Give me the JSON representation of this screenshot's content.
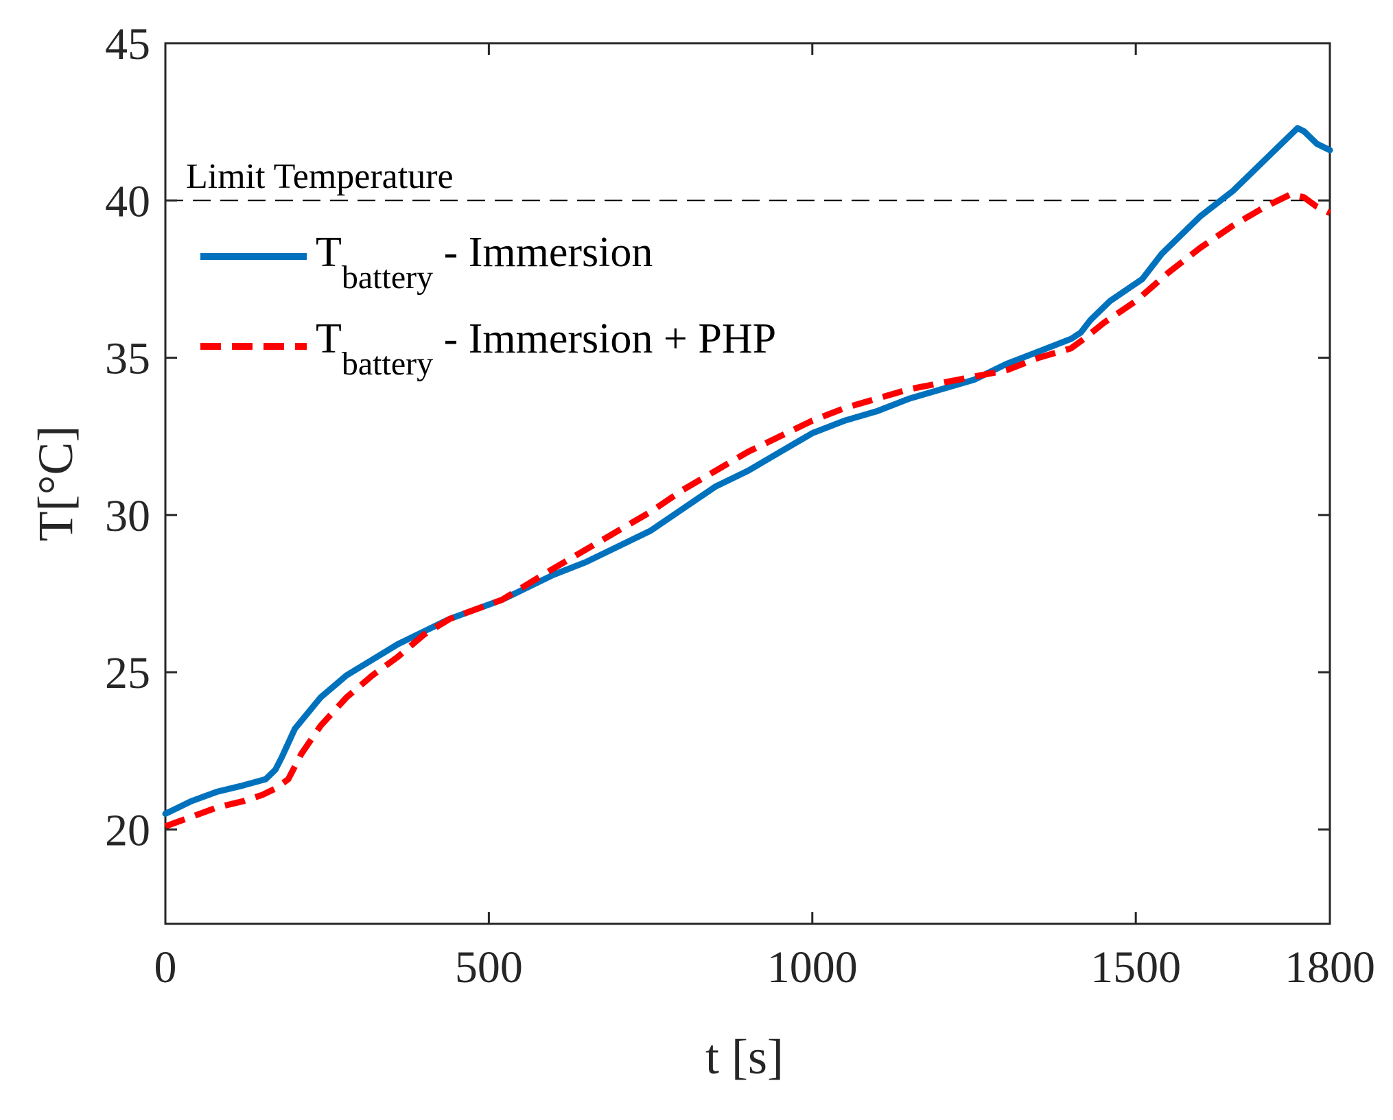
{
  "chart_data": {
    "type": "line",
    "title": "",
    "xlabel": "t [s]",
    "ylabel": "T[°C]",
    "xlim": [
      0,
      1800
    ],
    "ylim": [
      17,
      45
    ],
    "xticks": [
      0,
      500,
      1000,
      1500,
      1800
    ],
    "xtick_labels": [
      "0",
      "500",
      "1000",
      "1500",
      "1800"
    ],
    "yticks": [
      20,
      25,
      30,
      35,
      40,
      45
    ],
    "ytick_labels": [
      "20",
      "25",
      "30",
      "35",
      "40",
      "45"
    ],
    "grid": false,
    "legend_position": "top-left",
    "reference_line": {
      "y": 40,
      "label": "Limit Temperature",
      "color": "#000000",
      "style": "dashed"
    },
    "series": [
      {
        "name": "T_battery - Immersion",
        "legend_main": "T",
        "legend_sub": "battery",
        "legend_suffix": " - Immersion",
        "color": "#0072BD",
        "style": "solid",
        "x": [
          0,
          40,
          80,
          120,
          155,
          170,
          180,
          200,
          240,
          280,
          320,
          360,
          400,
          440,
          480,
          520,
          560,
          600,
          650,
          700,
          750,
          800,
          850,
          900,
          950,
          1000,
          1050,
          1100,
          1150,
          1200,
          1250,
          1300,
          1350,
          1400,
          1415,
          1430,
          1460,
          1510,
          1540,
          1560,
          1600,
          1650,
          1700,
          1750,
          1760,
          1780,
          1800
        ],
        "y": [
          20.5,
          20.9,
          21.2,
          21.4,
          21.6,
          21.9,
          22.3,
          23.2,
          24.2,
          24.9,
          25.4,
          25.9,
          26.3,
          26.7,
          27.0,
          27.3,
          27.7,
          28.1,
          28.5,
          29.0,
          29.5,
          30.2,
          30.9,
          31.4,
          32.0,
          32.6,
          33.0,
          33.3,
          33.7,
          34.0,
          34.3,
          34.8,
          35.2,
          35.6,
          35.8,
          36.2,
          36.8,
          37.5,
          38.3,
          38.7,
          39.5,
          40.3,
          41.3,
          42.3,
          42.2,
          41.8,
          41.6
        ]
      },
      {
        "name": "T_battery - Immersion + PHP",
        "legend_main": "T",
        "legend_sub": "battery",
        "legend_suffix": " - Immersion + PHP",
        "color": "#FF0000",
        "style": "dashed",
        "x": [
          0,
          40,
          80,
          120,
          150,
          170,
          190,
          210,
          240,
          280,
          320,
          360,
          400,
          440,
          480,
          520,
          560,
          600,
          650,
          700,
          750,
          800,
          850,
          900,
          950,
          1000,
          1050,
          1100,
          1150,
          1200,
          1250,
          1300,
          1350,
          1400,
          1420,
          1450,
          1500,
          1550,
          1600,
          1650,
          1700,
          1740,
          1760,
          1780,
          1800
        ],
        "y": [
          20.1,
          20.4,
          20.7,
          20.9,
          21.1,
          21.3,
          21.6,
          22.4,
          23.3,
          24.2,
          24.9,
          25.5,
          26.2,
          26.7,
          27.0,
          27.3,
          27.8,
          28.3,
          28.9,
          29.5,
          30.1,
          30.8,
          31.4,
          32.0,
          32.5,
          33.0,
          33.4,
          33.7,
          34.0,
          34.2,
          34.4,
          34.6,
          35.0,
          35.3,
          35.6,
          36.1,
          36.8,
          37.7,
          38.5,
          39.2,
          39.8,
          40.2,
          40.1,
          39.8,
          39.6
        ]
      }
    ]
  }
}
